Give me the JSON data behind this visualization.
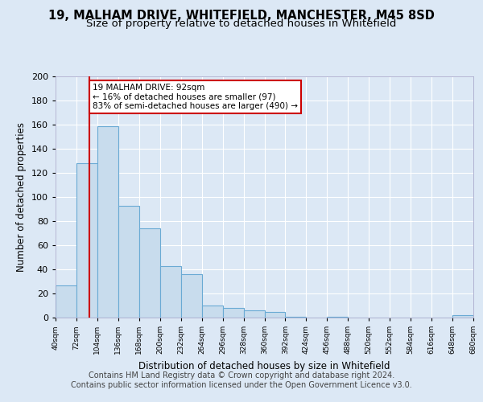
{
  "title": "19, MALHAM DRIVE, WHITEFIELD, MANCHESTER, M45 8SD",
  "subtitle": "Size of property relative to detached houses in Whitefield",
  "xlabel": "Distribution of detached houses by size in Whitefield",
  "ylabel": "Number of detached properties",
  "bar_color": "#c8dced",
  "bar_edge_color": "#6aaad4",
  "vline_x": 92,
  "vline_color": "#cc0000",
  "annotation_title": "19 MALHAM DRIVE: 92sqm",
  "annotation_line1": "← 16% of detached houses are smaller (97)",
  "annotation_line2": "83% of semi-detached houses are larger (490) →",
  "annotation_box_color": "#ffffff",
  "annotation_box_edge": "#cc0000",
  "bin_edges": [
    40,
    72,
    104,
    136,
    168,
    200,
    232,
    264,
    296,
    328,
    360,
    392,
    424,
    456,
    488,
    520,
    552,
    584,
    616,
    648,
    680
  ],
  "bar_heights": [
    27,
    128,
    159,
    93,
    74,
    43,
    36,
    10,
    8,
    6,
    5,
    1,
    0,
    1,
    0,
    0,
    0,
    0,
    0,
    2
  ],
  "ylim": [
    0,
    200
  ],
  "yticks": [
    0,
    20,
    40,
    60,
    80,
    100,
    120,
    140,
    160,
    180,
    200
  ],
  "tick_labels": [
    "40sqm",
    "72sqm",
    "104sqm",
    "136sqm",
    "168sqm",
    "200sqm",
    "232sqm",
    "264sqm",
    "296sqm",
    "328sqm",
    "360sqm",
    "392sqm",
    "424sqm",
    "456sqm",
    "488sqm",
    "520sqm",
    "552sqm",
    "584sqm",
    "616sqm",
    "648sqm",
    "680sqm"
  ],
  "footer_line1": "Contains HM Land Registry data © Crown copyright and database right 2024.",
  "footer_line2": "Contains public sector information licensed under the Open Government Licence v3.0.",
  "background_color": "#dce8f5",
  "plot_bg_color": "#dce8f5",
  "grid_color": "#ffffff",
  "title_fontsize": 10.5,
  "subtitle_fontsize": 9.5,
  "axis_label_fontsize": 8.5,
  "footer_fontsize": 7
}
